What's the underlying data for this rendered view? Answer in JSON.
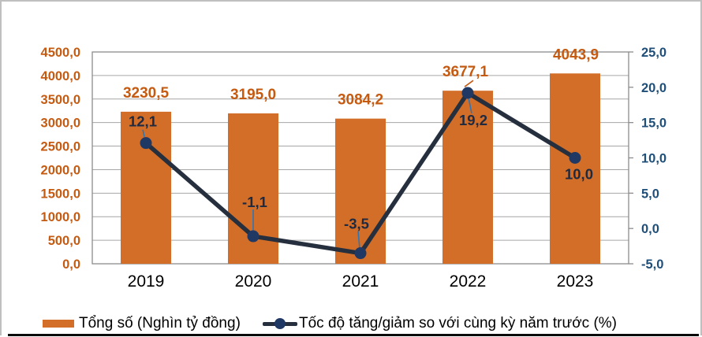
{
  "chart_data": {
    "type": "combo",
    "categories": [
      "2019",
      "2020",
      "2021",
      "2022",
      "2023"
    ],
    "series": [
      {
        "name": "Tổng số (Nghìn tỷ đồng)",
        "type": "bar",
        "axis": "left",
        "values": [
          3230.5,
          3195.0,
          3084.2,
          3677.1,
          4043.9
        ],
        "data_labels": [
          "3230,5",
          "3195,0",
          "3084,2",
          "3677,1",
          "4043,9"
        ],
        "color": "#D26E28",
        "label_color": "#C55A11"
      },
      {
        "name": "Tốc độ tăng/giảm so với cùng kỳ năm trước (%)",
        "type": "line",
        "axis": "right",
        "values": [
          12.1,
          -1.1,
          -3.5,
          19.2,
          10.0
        ],
        "data_labels": [
          "12,1",
          "-1,1",
          "-3,5",
          "19,2",
          "10,0"
        ],
        "color": "#252F3D",
        "marker_color": "#1F3864",
        "label_color": "#1F2A40",
        "leader_color": "#2E75B6"
      }
    ],
    "left_axis": {
      "min": 0,
      "max": 4500,
      "step": 500,
      "tick_labels": [
        "0,0",
        "500,0",
        "1000,0",
        "1500,0",
        "2000,0",
        "2500,0",
        "3000,0",
        "3500,0",
        "4000,0",
        "4500,0"
      ],
      "color": "#C55A11"
    },
    "right_axis": {
      "min": -5,
      "max": 25,
      "step": 5,
      "tick_labels": [
        "-5,0",
        "0,0",
        "5,0",
        "10,0",
        "15,0",
        "20,0",
        "25,0"
      ],
      "color": "#1F4E79"
    },
    "grid": {
      "color": "#A6A6A6",
      "border_color": "#8C8C8C"
    },
    "x_axis": {
      "label_color": "#000000"
    }
  },
  "legend": {
    "items": [
      {
        "label": "Tổng số (Nghìn tỷ đồng)",
        "swatch": "bar-swatch",
        "color": "#D26E28"
      },
      {
        "label": "Tốc độ tăng/giảm so với cùng kỳ năm trước (%)",
        "swatch": "line-marker-swatch",
        "line_color": "#252F3D",
        "marker_color": "#1F3864"
      }
    ]
  }
}
